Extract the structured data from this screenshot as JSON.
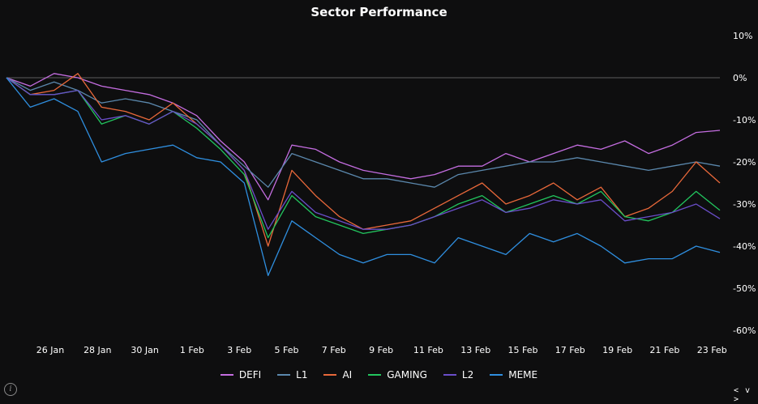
{
  "chart_data": {
    "type": "line",
    "title": "Sector Performance",
    "xlabel": "",
    "ylabel": "",
    "x_ticks": [
      "26 Jan",
      "28 Jan",
      "30 Jan",
      "1 Feb",
      "3 Feb",
      "5 Feb",
      "7 Feb",
      "9 Feb",
      "11 Feb",
      "13 Feb",
      "15 Feb",
      "17 Feb",
      "19 Feb",
      "21 Feb",
      "23 Feb"
    ],
    "y_ticks": [
      "10%",
      "0%",
      "-10%",
      "-20%",
      "-30%",
      "-40%",
      "-50%",
      "-60%"
    ],
    "ylim": [
      -60,
      10
    ],
    "y_axis_position": "right",
    "baseline": 0,
    "legend_position": "bottom",
    "grid": false,
    "series": [
      {
        "name": "DEFI",
        "color": "#c46de0",
        "x": [
          0,
          1,
          2,
          3,
          4,
          5,
          6,
          7,
          8,
          9,
          10,
          11,
          12,
          13,
          14,
          15,
          16,
          17,
          18,
          19,
          20,
          21,
          22,
          23,
          24,
          25,
          26,
          27,
          28,
          29,
          30
        ],
        "values": [
          0,
          -2,
          1,
          0,
          -2,
          -3,
          -4,
          -6,
          -9,
          -15,
          -20,
          -29,
          -16,
          -17,
          -20,
          -22,
          -23,
          -24,
          -23,
          -21,
          -21,
          -18,
          -20,
          -18,
          -16,
          -17,
          -15,
          -18,
          -16,
          -13,
          -12.5
        ]
      },
      {
        "name": "L1",
        "color": "#5b88ad",
        "x": [
          0,
          1,
          2,
          3,
          4,
          5,
          6,
          7,
          8,
          9,
          10,
          11,
          12,
          13,
          14,
          15,
          16,
          17,
          18,
          19,
          20,
          21,
          22,
          23,
          24,
          25,
          26,
          27,
          28,
          29,
          30
        ],
        "values": [
          0,
          -3,
          -1,
          -3,
          -6,
          -5,
          -6,
          -8,
          -10,
          -16,
          -21,
          -26,
          -18,
          -20,
          -22,
          -24,
          -24,
          -25,
          -26,
          -23,
          -22,
          -21,
          -20,
          -20,
          -19,
          -20,
          -21,
          -22,
          -21,
          -20,
          -21
        ]
      },
      {
        "name": "AI",
        "color": "#e8683a",
        "x": [
          0,
          1,
          2,
          3,
          4,
          5,
          6,
          7,
          8,
          9,
          10,
          11,
          12,
          13,
          14,
          15,
          16,
          17,
          18,
          19,
          20,
          21,
          22,
          23,
          24,
          25,
          26,
          27,
          28,
          29,
          30
        ],
        "values": [
          0,
          -4,
          -3,
          1,
          -7,
          -8,
          -10,
          -6,
          -11,
          -16,
          -22,
          -40,
          -22,
          -28,
          -33,
          -36,
          -35,
          -34,
          -31,
          -28,
          -25,
          -30,
          -28,
          -25,
          -29,
          -26,
          -33,
          -31,
          -27,
          -20,
          -25
        ]
      },
      {
        "name": "GAMING",
        "color": "#22c55e",
        "x": [
          0,
          1,
          2,
          3,
          4,
          5,
          6,
          7,
          8,
          9,
          10,
          11,
          12,
          13,
          14,
          15,
          16,
          17,
          18,
          19,
          20,
          21,
          22,
          23,
          24,
          25,
          26,
          27,
          28,
          29,
          30
        ],
        "values": [
          0,
          -4,
          -4,
          -3,
          -11,
          -9,
          -11,
          -8,
          -12,
          -17,
          -23,
          -38,
          -28,
          -33,
          -35,
          -37,
          -36,
          -35,
          -33,
          -30,
          -28,
          -32,
          -30,
          -28,
          -30,
          -27,
          -33,
          -34,
          -32,
          -27,
          -31.5
        ]
      },
      {
        "name": "L2",
        "color": "#6a4ec9",
        "x": [
          0,
          1,
          2,
          3,
          4,
          5,
          6,
          7,
          8,
          9,
          10,
          11,
          12,
          13,
          14,
          15,
          16,
          17,
          18,
          19,
          20,
          21,
          22,
          23,
          24,
          25,
          26,
          27,
          28,
          29,
          30
        ],
        "values": [
          0,
          -4,
          -4,
          -3,
          -10,
          -9,
          -11,
          -8,
          -11,
          -16,
          -22,
          -36,
          -27,
          -32,
          -34,
          -36,
          -36,
          -35,
          -33,
          -31,
          -29,
          -32,
          -31,
          -29,
          -30,
          -29,
          -34,
          -33,
          -32,
          -30,
          -33.5
        ]
      },
      {
        "name": "MEME",
        "color": "#2f8fe0",
        "x": [
          0,
          1,
          2,
          3,
          4,
          5,
          6,
          7,
          8,
          9,
          10,
          11,
          12,
          13,
          14,
          15,
          16,
          17,
          18,
          19,
          20,
          21,
          22,
          23,
          24,
          25,
          26,
          27,
          28,
          29,
          30
        ],
        "values": [
          0,
          -7,
          -5,
          -8,
          -20,
          -18,
          -17,
          -16,
          -19,
          -20,
          -25,
          -47,
          -34,
          -38,
          -42,
          -44,
          -42,
          -42,
          -44,
          -38,
          -40,
          -42,
          -37,
          -39,
          -37,
          -40,
          -44,
          -43,
          -43,
          -40,
          -41.5
        ]
      }
    ]
  },
  "legend": [
    {
      "label": "DEFI",
      "color": "#c46de0"
    },
    {
      "label": "L1",
      "color": "#5b88ad"
    },
    {
      "label": "AI",
      "color": "#e8683a"
    },
    {
      "label": "GAMING",
      "color": "#22c55e"
    },
    {
      "label": "L2",
      "color": "#6a4ec9"
    },
    {
      "label": "MEME",
      "color": "#2f8fe0"
    }
  ],
  "info_icon": {
    "icon": "info-icon",
    "glyph": "i"
  },
  "nav": {
    "icon": "prev-next-icon",
    "text": "< v >"
  }
}
